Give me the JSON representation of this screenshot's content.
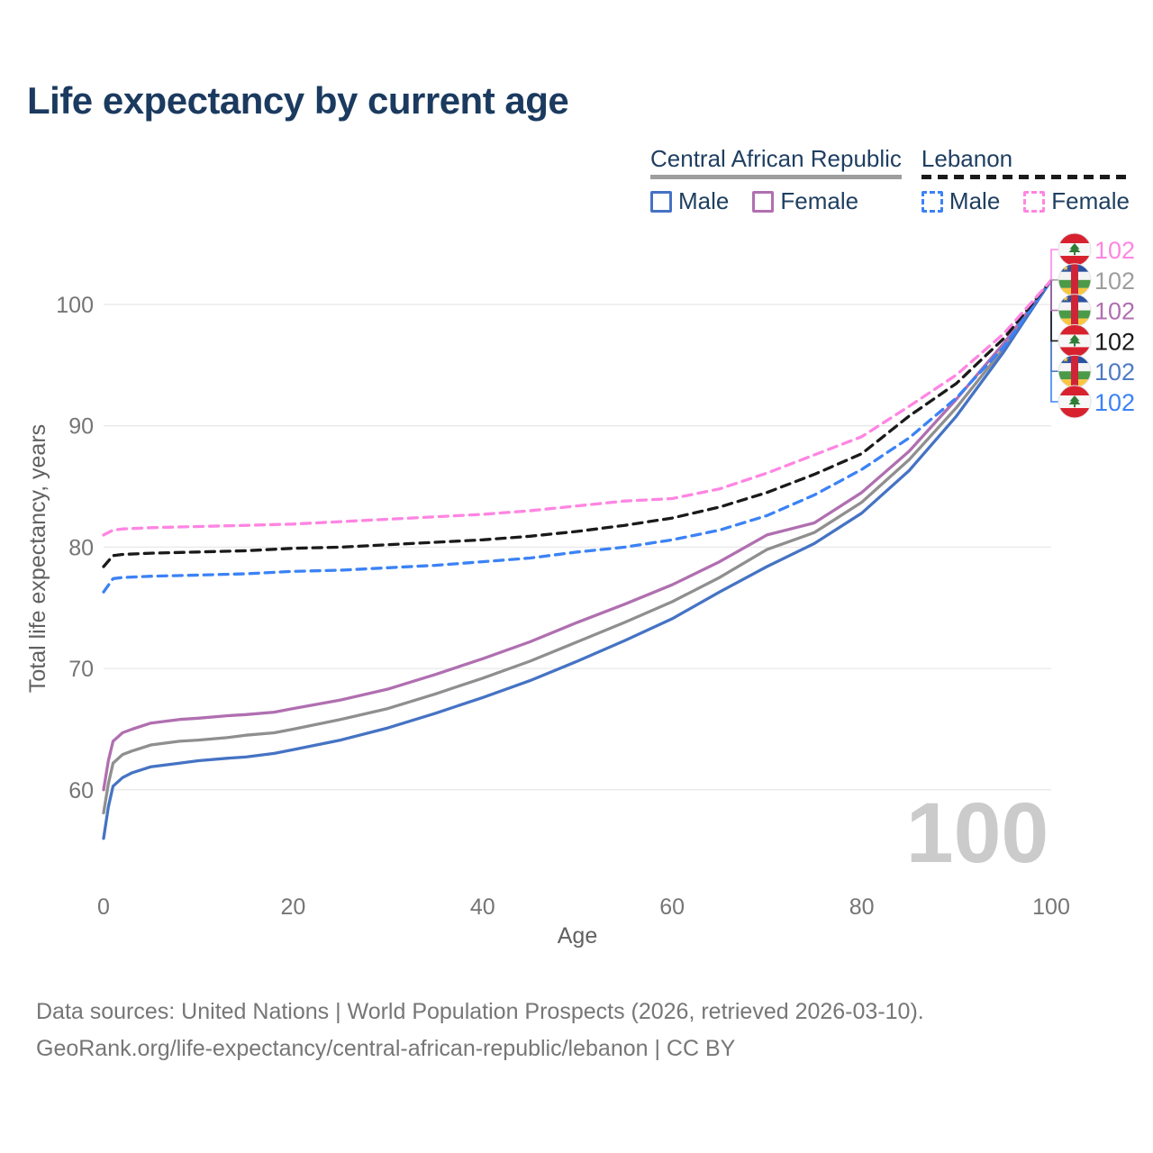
{
  "page": {
    "title": "Life expectancy by current age"
  },
  "legend": {
    "groups": [
      {
        "name": "Central African Republic",
        "line_style": "solid",
        "rule_color": "#9e9e9e",
        "items": [
          {
            "label": "Male",
            "color": "#4573c4",
            "dashed": false
          },
          {
            "label": "Female",
            "color": "#b06fb0",
            "dashed": false
          }
        ]
      },
      {
        "name": "Lebanon",
        "line_style": "dashed",
        "rule_color": "#1a1a1a",
        "items": [
          {
            "label": "Male",
            "color": "#3b82f6",
            "dashed": true
          },
          {
            "label": "Female",
            "color": "#ff85e2",
            "dashed": true
          }
        ]
      }
    ]
  },
  "chart_data": {
    "type": "line",
    "title": "Life expectancy by current age",
    "xlabel": "Age",
    "ylabel": "Total life expectancy, years",
    "xlim": [
      0,
      100
    ],
    "ylim": [
      52,
      105
    ],
    "xticks": [
      0,
      20,
      40,
      60,
      80,
      100
    ],
    "yticks": [
      60,
      70,
      80,
      90,
      100
    ],
    "grid": "horizontal",
    "legend_position": "top-right",
    "watermark": "100",
    "series": [
      {
        "id": "car-total",
        "name": "Central African Republic Total",
        "color": "#8f8f8f",
        "dashed": false,
        "points": [
          [
            0,
            58.1
          ],
          [
            0.5,
            60.5
          ],
          [
            1,
            62.2
          ],
          [
            2,
            62.9
          ],
          [
            3,
            63.2
          ],
          [
            5,
            63.7
          ],
          [
            8,
            64.0
          ],
          [
            10,
            64.1
          ],
          [
            13,
            64.3
          ],
          [
            15,
            64.5
          ],
          [
            18,
            64.7
          ],
          [
            20,
            65.0
          ],
          [
            25,
            65.8
          ],
          [
            30,
            66.7
          ],
          [
            35,
            67.9
          ],
          [
            40,
            69.2
          ],
          [
            45,
            70.6
          ],
          [
            50,
            72.2
          ],
          [
            55,
            73.8
          ],
          [
            60,
            75.5
          ],
          [
            65,
            77.5
          ],
          [
            70,
            79.8
          ],
          [
            75,
            81.2
          ],
          [
            80,
            83.7
          ],
          [
            85,
            87.2
          ],
          [
            90,
            91.5
          ],
          [
            95,
            96.4
          ],
          [
            100,
            102
          ]
        ]
      },
      {
        "id": "car-female",
        "name": "Central African Republic Female",
        "color": "#b06fb0",
        "dashed": false,
        "points": [
          [
            0,
            60.0
          ],
          [
            0.5,
            62.4
          ],
          [
            1,
            64.0
          ],
          [
            2,
            64.7
          ],
          [
            3,
            65.0
          ],
          [
            5,
            65.5
          ],
          [
            8,
            65.8
          ],
          [
            10,
            65.9
          ],
          [
            13,
            66.1
          ],
          [
            15,
            66.2
          ],
          [
            18,
            66.4
          ],
          [
            20,
            66.7
          ],
          [
            25,
            67.4
          ],
          [
            30,
            68.3
          ],
          [
            35,
            69.5
          ],
          [
            40,
            70.8
          ],
          [
            45,
            72.2
          ],
          [
            50,
            73.8
          ],
          [
            55,
            75.3
          ],
          [
            60,
            76.9
          ],
          [
            65,
            78.8
          ],
          [
            70,
            81.0
          ],
          [
            75,
            82.0
          ],
          [
            80,
            84.5
          ],
          [
            85,
            87.9
          ],
          [
            90,
            92.2
          ],
          [
            95,
            96.8
          ],
          [
            100,
            102
          ]
        ]
      },
      {
        "id": "car-male",
        "name": "Central African Republic Male",
        "color": "#4573c4",
        "dashed": false,
        "points": [
          [
            0,
            56.0
          ],
          [
            0.5,
            58.6
          ],
          [
            1,
            60.3
          ],
          [
            2,
            61.0
          ],
          [
            3,
            61.4
          ],
          [
            5,
            61.9
          ],
          [
            8,
            62.2
          ],
          [
            10,
            62.4
          ],
          [
            13,
            62.6
          ],
          [
            15,
            62.7
          ],
          [
            18,
            63.0
          ],
          [
            20,
            63.3
          ],
          [
            25,
            64.1
          ],
          [
            30,
            65.1
          ],
          [
            35,
            66.3
          ],
          [
            40,
            67.6
          ],
          [
            45,
            69.0
          ],
          [
            50,
            70.6
          ],
          [
            55,
            72.3
          ],
          [
            60,
            74.1
          ],
          [
            65,
            76.3
          ],
          [
            70,
            78.4
          ],
          [
            75,
            80.3
          ],
          [
            80,
            82.8
          ],
          [
            85,
            86.3
          ],
          [
            90,
            90.8
          ],
          [
            95,
            96.1
          ],
          [
            100,
            102
          ]
        ]
      },
      {
        "id": "lbn-male",
        "name": "Lebanon Male",
        "color": "#3b82f6",
        "dashed": true,
        "points": [
          [
            0,
            76.3
          ],
          [
            1,
            77.4
          ],
          [
            2,
            77.5
          ],
          [
            5,
            77.6
          ],
          [
            10,
            77.7
          ],
          [
            15,
            77.8
          ],
          [
            20,
            78.0
          ],
          [
            25,
            78.1
          ],
          [
            30,
            78.3
          ],
          [
            35,
            78.5
          ],
          [
            40,
            78.8
          ],
          [
            45,
            79.1
          ],
          [
            50,
            79.6
          ],
          [
            55,
            80.0
          ],
          [
            60,
            80.6
          ],
          [
            65,
            81.4
          ],
          [
            70,
            82.6
          ],
          [
            75,
            84.3
          ],
          [
            80,
            86.4
          ],
          [
            85,
            89.0
          ],
          [
            90,
            92.3
          ],
          [
            95,
            96.5
          ],
          [
            100,
            102
          ]
        ]
      },
      {
        "id": "lbn-total",
        "name": "Lebanon Total",
        "color": "#1a1a1a",
        "dashed": true,
        "points": [
          [
            0,
            78.4
          ],
          [
            1,
            79.3
          ],
          [
            2,
            79.4
          ],
          [
            5,
            79.5
          ],
          [
            10,
            79.6
          ],
          [
            15,
            79.7
          ],
          [
            20,
            79.9
          ],
          [
            25,
            80.0
          ],
          [
            30,
            80.2
          ],
          [
            35,
            80.4
          ],
          [
            40,
            80.6
          ],
          [
            45,
            80.9
          ],
          [
            50,
            81.3
          ],
          [
            55,
            81.8
          ],
          [
            60,
            82.4
          ],
          [
            65,
            83.3
          ],
          [
            70,
            84.5
          ],
          [
            75,
            86.0
          ],
          [
            80,
            87.7
          ],
          [
            85,
            90.8
          ],
          [
            90,
            93.5
          ],
          [
            95,
            97.2
          ],
          [
            100,
            102
          ]
        ]
      },
      {
        "id": "lbn-female",
        "name": "Lebanon Female",
        "color": "#ff85e2",
        "dashed": true,
        "points": [
          [
            0,
            81.0
          ],
          [
            1,
            81.4
          ],
          [
            2,
            81.5
          ],
          [
            5,
            81.6
          ],
          [
            10,
            81.7
          ],
          [
            15,
            81.8
          ],
          [
            20,
            81.9
          ],
          [
            25,
            82.1
          ],
          [
            30,
            82.3
          ],
          [
            35,
            82.5
          ],
          [
            40,
            82.7
          ],
          [
            45,
            83.0
          ],
          [
            50,
            83.4
          ],
          [
            55,
            83.8
          ],
          [
            60,
            84.0
          ],
          [
            65,
            84.8
          ],
          [
            70,
            86.1
          ],
          [
            75,
            87.6
          ],
          [
            80,
            89.1
          ],
          [
            85,
            91.6
          ],
          [
            90,
            94.2
          ],
          [
            95,
            97.6
          ],
          [
            100,
            102
          ]
        ]
      }
    ],
    "end_labels": [
      {
        "flag": "lebanon",
        "series": "Lebanon Female",
        "value": "102",
        "color": "#ff85e2"
      },
      {
        "flag": "car",
        "series": "Central African Republic Total",
        "value": "102",
        "color": "#9e9e9e"
      },
      {
        "flag": "car",
        "series": "Central African Republic Female",
        "value": "102",
        "color": "#b06fb0"
      },
      {
        "flag": "lebanon",
        "series": "Lebanon Total",
        "value": "102",
        "color": "#1a1a1a"
      },
      {
        "flag": "car",
        "series": "Central African Republic Male",
        "value": "102",
        "color": "#4e7bc4"
      },
      {
        "flag": "lebanon",
        "series": "Lebanon Male",
        "value": "102",
        "color": "#3b82f6"
      }
    ]
  },
  "footer": {
    "line1": "Data sources: United Nations | World Population Prospects (2026, retrieved 2026-03-10).",
    "line2": "GeoRank.org/life-expectancy/central-african-republic/lebanon | CC BY"
  }
}
